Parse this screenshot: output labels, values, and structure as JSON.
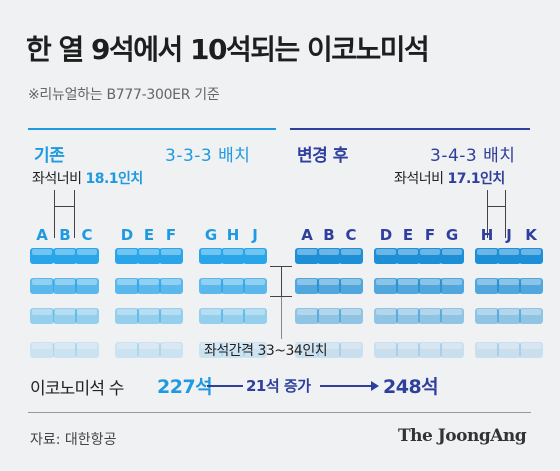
{
  "title": "한 열 9석에서 10석되는 이코노미석",
  "subtitle": "※리뉴얼하는 B777-300ER 기준",
  "colors": {
    "before": "#1f9ae0",
    "after": "#2e3f9e",
    "seat_before": "#29a6ea",
    "seat_after": "#1c8fd6"
  },
  "before": {
    "label": "기존",
    "config": "3-3-3 배치",
    "width_label": "좌석너비",
    "width_value": "18.1인치",
    "seat_letters": [
      "A",
      "B",
      "C",
      "D",
      "E",
      "F",
      "G",
      "H",
      "J"
    ]
  },
  "after": {
    "label": "변경 후",
    "config": "3-4-3 배치",
    "width_label": "좌석너비",
    "width_value": "17.1인치",
    "seat_letters": [
      "A",
      "B",
      "C",
      "D",
      "E",
      "F",
      "G",
      "H",
      "J",
      "K"
    ]
  },
  "pitch_label": "좌석간격 33~34인치",
  "counts": {
    "label": "이코노미석 수",
    "before": "227석",
    "change": "21석 증가",
    "after": "248석"
  },
  "source": "자료: 대한항공",
  "brand": "The JoongAng"
}
